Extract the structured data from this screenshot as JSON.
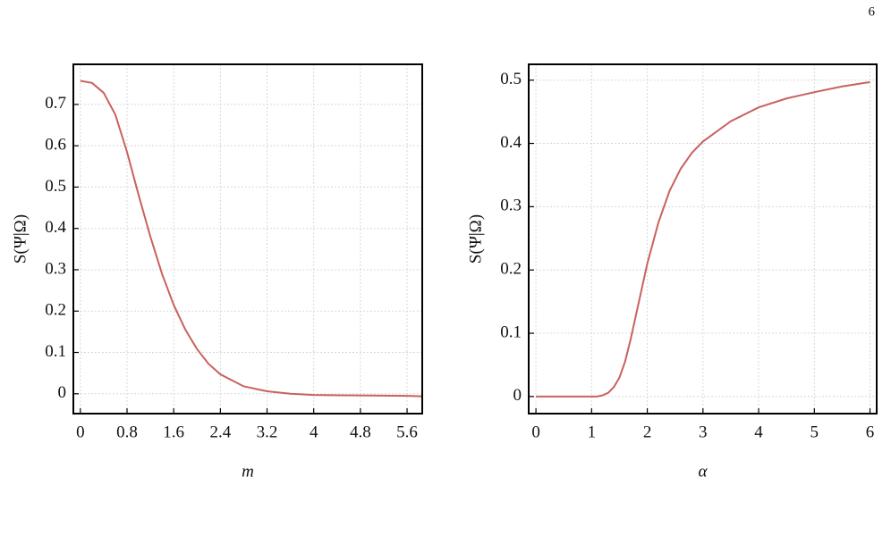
{
  "page_number": "6",
  "chart_data": [
    {
      "type": "line",
      "xlabel": "m",
      "ylabel": "S(Ψ|Ω)",
      "x": [
        0,
        0.2,
        0.4,
        0.6,
        0.8,
        1.0,
        1.2,
        1.4,
        1.6,
        1.8,
        2.0,
        2.2,
        2.4,
        2.8,
        3.2,
        3.6,
        4.0,
        4.8,
        5.6,
        5.85
      ],
      "series": [
        {
          "color": "#c9615f",
          "values": [
            0.757,
            0.752,
            0.728,
            0.675,
            0.585,
            0.48,
            0.38,
            0.29,
            0.215,
            0.155,
            0.108,
            0.072,
            0.047,
            0.018,
            0.006,
            0.0,
            -0.003,
            -0.004,
            -0.005,
            -0.006
          ]
        }
      ],
      "xlim": [
        -0.12,
        5.86
      ],
      "ylim": [
        -0.048,
        0.797
      ],
      "xticks": [
        0,
        0.8,
        1.6,
        2.4,
        3.2,
        4,
        4.8,
        5.6
      ],
      "yticks": [
        0,
        0.1,
        0.2,
        0.3,
        0.4,
        0.5,
        0.6,
        0.7
      ],
      "grid": true
    },
    {
      "type": "line",
      "xlabel": "α",
      "ylabel": "S(Ψ|Ω)",
      "x": [
        0,
        1.0,
        1.1,
        1.2,
        1.3,
        1.4,
        1.5,
        1.6,
        1.7,
        1.8,
        1.9,
        2.0,
        2.2,
        2.4,
        2.6,
        2.8,
        3.0,
        3.5,
        4.0,
        4.5,
        5.0,
        5.5,
        6.0
      ],
      "series": [
        {
          "color": "#c9615f",
          "values": [
            0,
            0,
            0.0,
            0.002,
            0.006,
            0.015,
            0.03,
            0.055,
            0.09,
            0.13,
            0.17,
            0.21,
            0.275,
            0.325,
            0.36,
            0.385,
            0.403,
            0.435,
            0.457,
            0.471,
            0.481,
            0.49,
            0.497
          ]
        }
      ],
      "xlim": [
        -0.13,
        6.12
      ],
      "ylim": [
        -0.027,
        0.525
      ],
      "xticks": [
        0,
        1,
        2,
        3,
        4,
        5,
        6
      ],
      "yticks": [
        0,
        0.1,
        0.2,
        0.3,
        0.4,
        0.5
      ],
      "grid": true
    }
  ]
}
